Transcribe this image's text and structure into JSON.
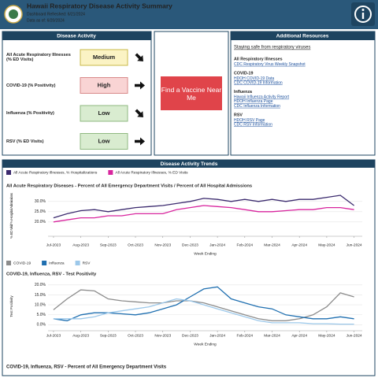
{
  "header": {
    "title": "Hawaii Respiratory Disease Activity Summary",
    "refreshed": "Dashboard Refreshed: 6/21/2024",
    "data_as_of": "Data as of: 6/20/2024"
  },
  "activity": {
    "title": "Disease Activity",
    "rows": [
      {
        "label": "All Acute Respiratory Illnesses (% ED Visits)",
        "level": "Medium"
      },
      {
        "label": "COVID-19 (% Positivity)",
        "level": "High"
      },
      {
        "label": "Influenza (% Positivity)",
        "level": "Low"
      },
      {
        "label": "RSV (% ED Visits)",
        "level": "Low"
      }
    ]
  },
  "vaccine_button": "Find a Vaccine Near Me",
  "resources": {
    "title": "Additional Resources",
    "main_link": "Staying safe from respiratory viruses",
    "groups": [
      {
        "heading": "All Respiratory Illnesses",
        "links": [
          "CDC Respiratory Virus Weekly Snapshot"
        ]
      },
      {
        "heading": "COVID-19",
        "links": [
          "HDOH COVID-19 Data",
          "CDC COVID-19 Information"
        ]
      },
      {
        "heading": "Influenza",
        "links": [
          "Hawaii Influenza Activity Report",
          "HDOH Influenza Page",
          "CDC Influenza Information"
        ]
      },
      {
        "heading": "RSV",
        "links": [
          "HDOH RSV Page",
          "CDC RSV Information"
        ]
      }
    ]
  },
  "trends": {
    "title": "Disease Activity Trends",
    "next_title": "COVID-19, Influenza, RSV - Percent of All Emergency Department Visits"
  },
  "chart_data": [
    {
      "type": "line",
      "title": "All Acute Respiratory Diseases - Percent of All Emergency Department Visits / Percent of All Hospital Admissions",
      "y_label": "% ED Visit/ % Hospital Admissions",
      "x_label": "Week Ending",
      "x": [
        0,
        0.5,
        1,
        1.5,
        2,
        2.5,
        3,
        3.5,
        4,
        4.5,
        5,
        5.5,
        6,
        6.5,
        7,
        7.5,
        8,
        8.5,
        9,
        9.5,
        10,
        10.5,
        11
      ],
      "xlim": [
        -0.2,
        11.3
      ],
      "xticks": [
        {
          "value": 0,
          "label": "Jul-2023"
        },
        {
          "value": 1,
          "label": "Aug-2023"
        },
        {
          "value": 2,
          "label": "Sep-2023"
        },
        {
          "value": 3,
          "label": "Oct-2023"
        },
        {
          "value": 4,
          "label": "Nov-2023"
        },
        {
          "value": 5,
          "label": "Dec-2023"
        },
        {
          "value": 6,
          "label": "Jan-2024"
        },
        {
          "value": 7,
          "label": "Feb-2024"
        },
        {
          "value": 8,
          "label": "Mar-2024"
        },
        {
          "value": 9,
          "label": "Apr-2024"
        },
        {
          "value": 10,
          "label": "May-2024"
        },
        {
          "value": 11,
          "label": "Jun-2024"
        }
      ],
      "ylim": [
        13,
        33
      ],
      "yticks": [
        {
          "value": 20,
          "label": "20.0%"
        },
        {
          "value": 25,
          "label": "25.0%"
        },
        {
          "value": 30,
          "label": "30.0%"
        }
      ],
      "grid": true,
      "series": [
        {
          "name": "All Acute Respiratory Illnesses, % Hospitalizations",
          "color": "#3b2a6e",
          "values": [
            22,
            24,
            25.5,
            26,
            25,
            26,
            27,
            27.5,
            28,
            29,
            30,
            31.5,
            31,
            30,
            31,
            30,
            31,
            30,
            31,
            31,
            32,
            33,
            28
          ]
        },
        {
          "name": "All Acute Respiratory Illnesses, % ED Visits",
          "color": "#d8259e",
          "values": [
            20,
            21,
            22,
            22,
            23,
            23,
            24,
            24,
            24,
            26,
            27,
            28,
            27.5,
            27,
            26,
            25,
            25,
            25.5,
            26,
            26,
            27,
            27,
            26
          ]
        }
      ]
    },
    {
      "type": "line",
      "title": "COVID-19, Influenza, RSV - Test Positivity",
      "y_label": "Test Positivity",
      "x_label": "Week Ending",
      "x": [
        0,
        0.5,
        1,
        1.5,
        2,
        2.5,
        3,
        3.5,
        4,
        4.5,
        5,
        5.5,
        6,
        6.5,
        7,
        7.5,
        8,
        8.5,
        9,
        9.5,
        10,
        10.5,
        11
      ],
      "xlim": [
        -0.2,
        11.3
      ],
      "xticks": [
        {
          "value": 0,
          "label": "Jul-2023"
        },
        {
          "value": 1,
          "label": "Aug-2023"
        },
        {
          "value": 2,
          "label": "Sep-2023"
        },
        {
          "value": 3,
          "label": "Oct-2023"
        },
        {
          "value": 4,
          "label": "Nov-2023"
        },
        {
          "value": 5,
          "label": "Dec-2023"
        },
        {
          "value": 6,
          "label": "Jan-2024"
        },
        {
          "value": 7,
          "label": "Feb-2024"
        },
        {
          "value": 8,
          "label": "Mar-2024"
        },
        {
          "value": 9,
          "label": "Apr-2024"
        },
        {
          "value": 10,
          "label": "May-2024"
        },
        {
          "value": 11,
          "label": "Jun-2024"
        }
      ],
      "ylim": [
        -3,
        21.5
      ],
      "yticks": [
        {
          "value": 0,
          "label": "0.0%"
        },
        {
          "value": 5,
          "label": "5.0%"
        },
        {
          "value": 10,
          "label": "10.0%"
        },
        {
          "value": 15,
          "label": "15.0%"
        },
        {
          "value": 20,
          "label": "20.0%"
        }
      ],
      "grid": true,
      "series": [
        {
          "name": "COVID-19",
          "color": "#8c8c8c",
          "values": [
            7.5,
            13,
            17.5,
            17,
            13,
            12,
            11.5,
            11,
            11,
            12,
            12,
            11,
            9,
            7,
            5,
            3,
            2,
            2,
            3,
            5,
            9,
            16,
            14
          ]
        },
        {
          "name": "Influenza",
          "color": "#1f6fb0",
          "values": [
            3,
            2,
            5,
            6,
            6,
            5.5,
            5,
            6,
            8,
            10,
            14,
            18,
            19,
            13,
            11,
            9,
            8,
            5,
            4,
            3,
            3,
            4,
            3
          ]
        },
        {
          "name": "RSV",
          "color": "#9cc8ea",
          "values": [
            3,
            3,
            3,
            4,
            6,
            7,
            8,
            9,
            11,
            13,
            12,
            10,
            8,
            6,
            4,
            2,
            1,
            1,
            1,
            0.5,
            0.5,
            0.3,
            0.3
          ]
        }
      ]
    }
  ]
}
